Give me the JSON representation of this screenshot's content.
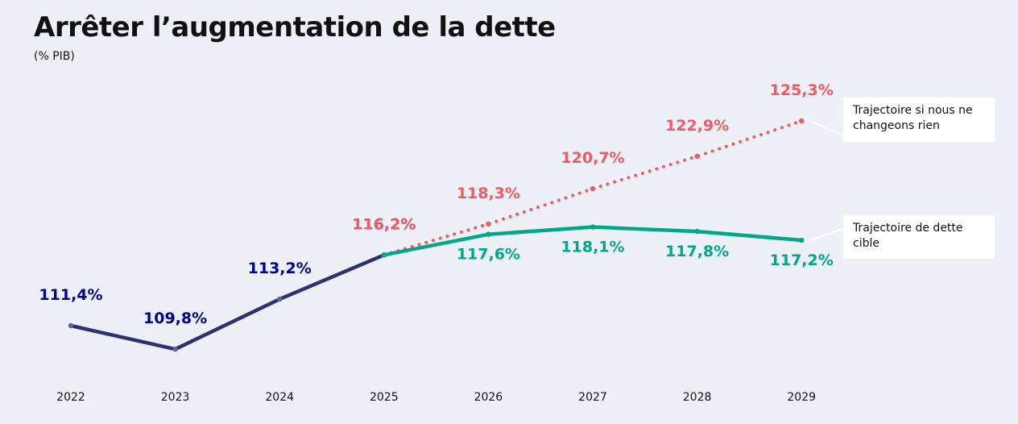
{
  "title": "Arrêter l’augmentation de la dette",
  "subtitle": "(% PIB)",
  "annotations": {
    "no_change": "Trajectoire si nous ne changeons rien",
    "target": "Trajectoire de dette cible"
  },
  "chart_data": {
    "type": "line",
    "title": "Arrêter l’augmentation de la dette",
    "ylabel": "(% PIB)",
    "xlabel": "",
    "categories": [
      "2022",
      "2023",
      "2024",
      "2025",
      "2026",
      "2027",
      "2028",
      "2029"
    ],
    "ylim": [
      106,
      128
    ],
    "grid": false,
    "legend": "none",
    "series": [
      {
        "name": "",
        "style": "solid",
        "color": "#2d3170",
        "label_color": "#000091",
        "x": [
          "2022",
          "2023",
          "2024",
          "2025"
        ],
        "values": [
          111.4,
          109.8,
          113.2,
          116.2
        ],
        "labels": [
          "111,4%",
          "109,8%",
          "113,2%",
          "116,2%"
        ]
      },
      {
        "name": "Trajectoire si nous ne changeons rien",
        "style": "dotted",
        "color": "#f05a64",
        "x": [
          "2025",
          "2026",
          "2027",
          "2028",
          "2029"
        ],
        "values": [
          116.2,
          118.3,
          120.7,
          122.9,
          125.3
        ],
        "labels": [
          "116,2%",
          "118,3%",
          "120,7%",
          "122,9%",
          "125,3%"
        ]
      },
      {
        "name": "Trajectoire de dette cible",
        "style": "solid",
        "color": "#00a887",
        "x": [
          "2025",
          "2026",
          "2027",
          "2028",
          "2029"
        ],
        "values": [
          116.2,
          117.6,
          118.1,
          117.8,
          117.2
        ],
        "labels": [
          "",
          "117,6%",
          "118,1%",
          "117,8%",
          "117,2%"
        ]
      }
    ]
  }
}
